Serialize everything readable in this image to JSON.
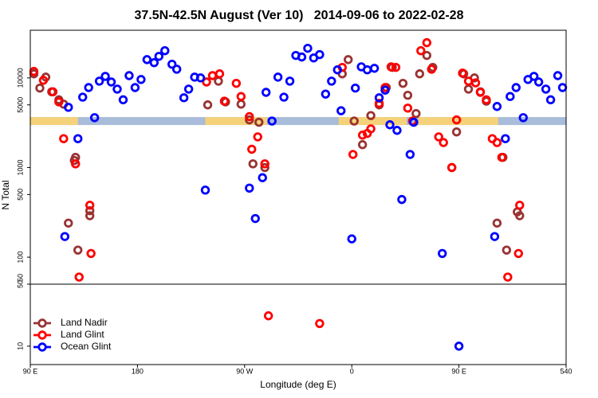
{
  "chart_data": [
    {
      "type": "scatter",
      "title": "37.5N-42.5N August (Ver 10)   2014-09-06 to 2022-02-28",
      "ylabel": "N Total",
      "ylog": true,
      "xlim": [
        90,
        540
      ],
      "ylim": [
        50,
        34000
      ],
      "yticks": [
        50,
        100,
        500,
        1000,
        5000,
        10000
      ],
      "surface_band": {
        "y": 3300,
        "land": [
          [
            90,
            130
          ],
          [
            237,
            289
          ],
          [
            349,
            406
          ],
          [
            416,
            483
          ]
        ],
        "land_color": "#f5d27a",
        "ocean_color": "#a9bcd9"
      },
      "series": [
        {
          "color": "#993333",
          "x": [
            93,
            98,
            103,
            108,
            114,
            118,
            127,
            128,
            122,
            130,
            140,
            140,
            239,
            248,
            254,
            267,
            274,
            277,
            282,
            287,
            352,
            357,
            362,
            369,
            376,
            383,
            389,
            394,
            403,
            407,
            414,
            417,
            423,
            428,
            448,
            444,
            454,
            458,
            463,
            468,
            473,
            487,
            482,
            490,
            499,
            501
          ],
          "values": [
            11100,
            7700,
            10200,
            7000,
            5700,
            5100,
            1200,
            1300,
            240,
            120,
            290,
            330,
            5000,
            9200,
            5400,
            5100,
            3400,
            1100,
            3200,
            1000,
            11100,
            16000,
            3300,
            1800,
            3800,
            5000,
            7800,
            13100,
            8700,
            6400,
            4000,
            11100,
            17800,
            13100,
            2500,
            1000,
            11100,
            7500,
            10000,
            7000,
            5500,
            1300,
            240,
            120,
            320,
            290
          ]
        },
        {
          "color": "#ff0000",
          "x": [
            93,
            101,
            109,
            114,
            118,
            128,
            140,
            141,
            131,
            238,
            243,
            249,
            253,
            263,
            267,
            274,
            276,
            281,
            287,
            352,
            361,
            369,
            373,
            376,
            383,
            388,
            393,
            397,
            407,
            411,
            418,
            423,
            427,
            433,
            437,
            444,
            448,
            453,
            458,
            464,
            468,
            473,
            478,
            482,
            486,
            501,
            500,
            491
          ],
          "values": [
            11800,
            9400,
            7000,
            5400,
            2100,
            1100,
            380,
            110,
            60,
            9000,
            10600,
            11100,
            5500,
            8700,
            6200,
            3700,
            1600,
            2200,
            1100,
            13100,
            1400,
            2300,
            2400,
            2700,
            5200,
            7800,
            13300,
            13100,
            4600,
            3300,
            20100,
            24700,
            12500,
            2200,
            1900,
            1000,
            3400,
            11300,
            9200,
            8800,
            6900,
            5700,
            2100,
            1900,
            1300,
            380,
            110,
            60
          ]
        },
        {
          "color": "#0000ff",
          "x": [
            119,
            122,
            130,
            134,
            139,
            144,
            148,
            153,
            158,
            163,
            168,
            173,
            178,
            183,
            188,
            194,
            198,
            203,
            209,
            213,
            219,
            223,
            228,
            233,
            237,
            274,
            279,
            285,
            288,
            293,
            298,
            303,
            308,
            313,
            318,
            323,
            328,
            333,
            338,
            343,
            348,
            351,
            360,
            363,
            368,
            373,
            379,
            383,
            388,
            392,
            398,
            402,
            409,
            412,
            436,
            480,
            482,
            489,
            493,
            498,
            504,
            508,
            513,
            517,
            523,
            527,
            533,
            537
          ],
          "values": [
            170,
            4700,
            2100,
            6100,
            7800,
            3600,
            9200,
            10400,
            9000,
            7500,
            5700,
            10600,
            7800,
            9600,
            16000,
            14800,
            17400,
            20100,
            14200,
            12500,
            6000,
            7500,
            10200,
            10000,
            560,
            590,
            270,
            770,
            6900,
            3300,
            10200,
            6100,
            9200,
            17800,
            17100,
            21400,
            16700,
            18200,
            6600,
            9200,
            12300,
            4300,
            160,
            7700,
            13300,
            12300,
            12800,
            6000,
            7300,
            3000,
            2600,
            440,
            1400,
            3200,
            110,
            170,
            4800,
            2100,
            6200,
            7800,
            3600,
            9600,
            10400,
            9000,
            7500,
            5700,
            10600,
            7800
          ]
        }
      ]
    },
    {
      "type": "scatter",
      "xlabel": "Longitude (deg E)",
      "ylog": true,
      "xlim": [
        90,
        540
      ],
      "ylim": [
        6.2,
        50
      ],
      "yticks": [
        10,
        50
      ],
      "xticks": [
        {
          "value": 90,
          "label": "90 E"
        },
        180,
        {
          "value": 270,
          "label": "90 W"
        },
        {
          "value": 360,
          "label": "0"
        },
        {
          "value": 450,
          "label": "90 E"
        },
        540
      ],
      "legend": "lower left",
      "series": [
        {
          "name": "Land Nadir",
          "color": "#993333",
          "x": [],
          "values": []
        },
        {
          "name": "Land Glint",
          "color": "#ff0000",
          "x": [
            290,
            333
          ],
          "values": [
            22,
            18
          ]
        },
        {
          "name": "Ocean Glint",
          "color": "#0000ff",
          "x": [
            450
          ],
          "values": [
            10
          ]
        }
      ]
    }
  ]
}
